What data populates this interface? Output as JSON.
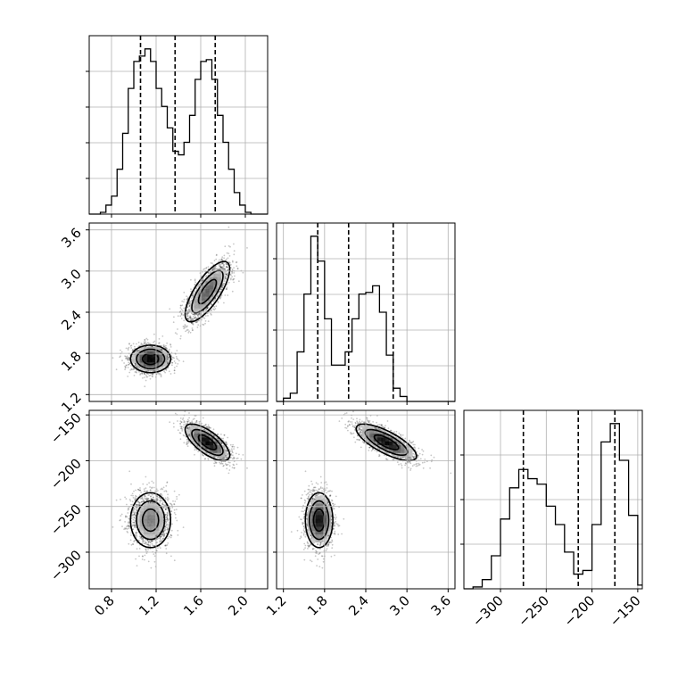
{
  "chart_data": {
    "type": "corner",
    "grid": true,
    "params": [
      {
        "range": [
          0.6,
          2.2
        ],
        "ticks": [
          0.8,
          1.2,
          1.6,
          2.0
        ],
        "tick_labels": [
          "0.8",
          "1.2",
          "1.6",
          "2.0"
        ],
        "quantiles": [
          1.06,
          1.37,
          1.73
        ],
        "hist": {
          "edges": [
            0.6,
            0.65,
            0.7,
            0.75,
            0.8,
            0.85,
            0.9,
            0.95,
            1.0,
            1.05,
            1.1,
            1.15,
            1.2,
            1.25,
            1.3,
            1.35,
            1.4,
            1.45,
            1.5,
            1.55,
            1.6,
            1.65,
            1.7,
            1.75,
            1.8,
            1.85,
            1.9,
            1.95,
            2.0,
            2.05,
            2.1,
            2.15,
            2.2
          ],
          "counts": [
            0,
            0,
            1,
            5,
            10,
            25,
            45,
            70,
            85,
            88,
            92,
            85,
            70,
            60,
            48,
            35,
            33,
            40,
            55,
            75,
            85,
            86,
            75,
            55,
            40,
            25,
            12,
            5,
            1,
            0,
            0,
            0
          ]
        }
      },
      {
        "range": [
          1.1,
          3.7
        ],
        "ticks": [
          1.2,
          1.8,
          2.4,
          3.0,
          3.6
        ],
        "tick_labels": [
          "1.2",
          "1.8",
          "2.4",
          "3.0",
          "3.6"
        ],
        "quantiles": [
          1.7,
          2.15,
          2.8
        ],
        "hist": {
          "edges": [
            1.1,
            1.2,
            1.3,
            1.4,
            1.5,
            1.6,
            1.7,
            1.8,
            1.9,
            2.0,
            2.1,
            2.2,
            2.3,
            2.4,
            2.5,
            2.6,
            2.7,
            2.8,
            2.9,
            3.0,
            3.1,
            3.2,
            3.3,
            3.4,
            3.5,
            3.6,
            3.7
          ],
          "counts": [
            0,
            2,
            5,
            30,
            65,
            100,
            85,
            50,
            22,
            22,
            30,
            50,
            65,
            66,
            70,
            54,
            28,
            8,
            3,
            0,
            0,
            0,
            0,
            0,
            0,
            0
          ]
        }
      },
      {
        "range": [
          -340,
          -145
        ],
        "ticks": [
          -300,
          -250,
          -200,
          -150
        ],
        "tick_labels": [
          "−300",
          "−250",
          "−200",
          "−150"
        ],
        "quantiles": [
          -275,
          -215,
          -175
        ],
        "hist": {
          "edges": [
            -340,
            -330,
            -320,
            -310,
            -300,
            -290,
            -280,
            -270,
            -260,
            -250,
            -240,
            -230,
            -220,
            -210,
            -200,
            -190,
            -180,
            -170,
            -160,
            -150,
            -145
          ],
          "counts": [
            0,
            1,
            5,
            18,
            38,
            55,
            65,
            60,
            57,
            45,
            35,
            20,
            8,
            10,
            35,
            80,
            90,
            70,
            40,
            2
          ]
        }
      }
    ],
    "clusters": [
      {
        "mean": [
          1.15,
          1.72,
          -265
        ],
        "sd": [
          0.09,
          0.1,
          15
        ]
      },
      {
        "mean": [
          1.66,
          2.7,
          -180
        ],
        "sd": [
          0.1,
          0.22,
          10
        ]
      }
    ]
  }
}
